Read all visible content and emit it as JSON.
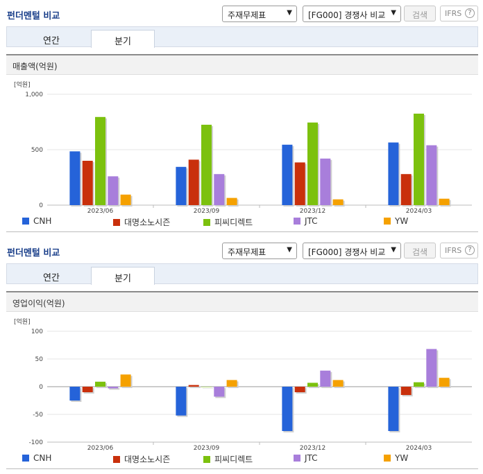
{
  "panels": [
    {
      "header": {
        "title": "펀더멘털 비교",
        "select1": "주재무제표",
        "select2": "[FG000] 경쟁사 비교",
        "search_label": "검색",
        "ifrs_label": "IFRS",
        "help": "?"
      },
      "tabs": [
        {
          "label": "연간",
          "active": false
        },
        {
          "label": "분기",
          "active": true
        }
      ],
      "section_title": "매출액(억원)",
      "chart_data": {
        "type": "bar",
        "unit_label": "[억원]",
        "categories": [
          "2023/06",
          "2023/09",
          "2023/12",
          "2024/03"
        ],
        "ylim": [
          0,
          1000
        ],
        "yticks": [
          0,
          500,
          1000
        ],
        "ytick_labels": [
          "0",
          "500",
          "1,000"
        ],
        "series": [
          {
            "name": "CNH",
            "color": "#2563d9",
            "values": [
              485,
              345,
              545,
              565
            ]
          },
          {
            "name": "대명소노시즌",
            "color": "#c9300c",
            "values": [
              400,
              410,
              385,
              280
            ]
          },
          {
            "name": "피씨디렉트",
            "color": "#7cc10e",
            "values": [
              795,
              725,
              745,
              825
            ]
          },
          {
            "name": "JTC",
            "color": "#a87edb",
            "values": [
              260,
              280,
              420,
              540
            ]
          },
          {
            "name": "YW",
            "color": "#f5a100",
            "values": [
              95,
              65,
              52,
              58
            ]
          }
        ]
      }
    },
    {
      "header": {
        "title": "펀더멘털 비교",
        "select1": "주재무제표",
        "select2": "[FG000] 경쟁사 비교",
        "search_label": "검색",
        "ifrs_label": "IFRS",
        "help": "?"
      },
      "tabs": [
        {
          "label": "연간",
          "active": false
        },
        {
          "label": "분기",
          "active": true
        }
      ],
      "section_title": "영업이익(억원)",
      "chart_data": {
        "type": "bar",
        "unit_label": "[억원]",
        "categories": [
          "2023/06",
          "2023/09",
          "2023/12",
          "2024/03"
        ],
        "ylim": [
          -100,
          100
        ],
        "yticks": [
          -100,
          -50,
          0,
          50,
          100
        ],
        "ytick_labels": [
          "-100",
          "-50",
          "0",
          "50",
          "100"
        ],
        "series": [
          {
            "name": "CNH",
            "color": "#2563d9",
            "values": [
              -25,
              -52,
              -80,
              -80
            ]
          },
          {
            "name": "대명소노시즌",
            "color": "#c9300c",
            "values": [
              -10,
              3,
              -10,
              -15
            ]
          },
          {
            "name": "피씨디렉트",
            "color": "#7cc10e",
            "values": [
              9,
              0,
              7,
              8
            ]
          },
          {
            "name": "JTC",
            "color": "#a87edb",
            "values": [
              -3,
              -18,
              29,
              68
            ]
          },
          {
            "name": "YW",
            "color": "#f5a100",
            "values": [
              22,
              12,
              12,
              16
            ]
          }
        ]
      }
    }
  ]
}
